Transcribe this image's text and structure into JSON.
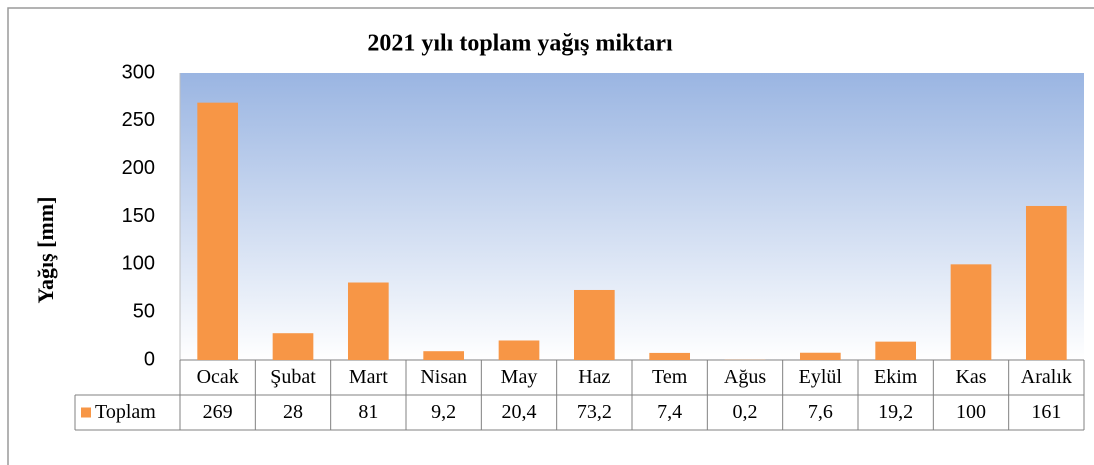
{
  "chart_data": {
    "type": "bar",
    "title": "2021 yılı toplam yağış miktarı",
    "y_label": "Yağış [mm]",
    "categories": [
      "Ocak",
      "Şubat",
      "Mart",
      "Nisan",
      "May",
      "Haz",
      "Tem",
      "Ağus",
      "Eylül",
      "Ekim",
      "Kas",
      "Aralık"
    ],
    "series": [
      {
        "name": "Toplam",
        "color": "#f79646",
        "values": [
          269,
          28,
          81,
          9.2,
          20.4,
          73.2,
          7.4,
          0.2,
          7.6,
          19.2,
          100,
          161
        ],
        "value_labels": [
          "269",
          "28",
          "81",
          "9,2",
          "20,4",
          "73,2",
          "7,4",
          "0,2",
          "7,6",
          "19,2",
          "100",
          "161"
        ]
      }
    ],
    "ylim": [
      0,
      300
    ],
    "yticks": [
      0,
      50,
      100,
      150,
      200,
      250,
      300
    ],
    "grid": false
  }
}
